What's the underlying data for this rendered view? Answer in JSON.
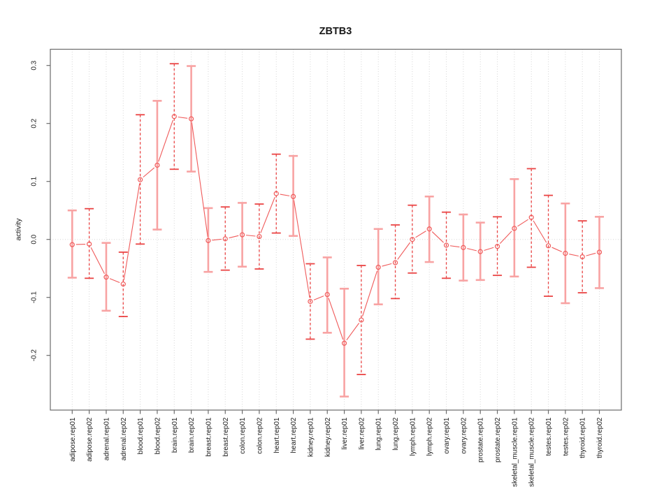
{
  "figure": {
    "title": "ZBTB3",
    "ylabel": "activity"
  },
  "chart_data": {
    "type": "line",
    "title": "ZBTB3",
    "xlabel": "",
    "ylabel": "activity",
    "ylim": [
      -0.295,
      0.328
    ],
    "yticks": [
      0.3,
      0.2,
      0.1,
      0.0,
      -0.1,
      -0.2
    ],
    "grid": {
      "vertical_dotted_per_category": true,
      "horizontal_dotted_zero_line": true
    },
    "legend": null,
    "categories": [
      "adipose.rep01",
      "adipose.rep02",
      "adrenal.rep01",
      "adrenal.rep02",
      "blood.rep01",
      "blood.rep02",
      "brain.rep01",
      "brain.rep02",
      "breast.rep01",
      "breast.rep02",
      "colon.rep01",
      "colon.rep02",
      "heart.rep01",
      "heart.rep02",
      "kidney.rep01",
      "kidney.rep02",
      "liver.rep01",
      "liver.rep02",
      "lung.rep01",
      "lung.rep02",
      "lymph.rep01",
      "lymph.rep02",
      "ovary.rep01",
      "ovary.rep02",
      "prostate.rep01",
      "prostate.rep02",
      "skeletal_muscle.rep01",
      "skeletal_muscle.rep02",
      "testes.rep01",
      "testes.rep02",
      "thyroid.rep01",
      "thyroid.rep02"
    ],
    "series": [
      {
        "name": "activity",
        "marker": "open-circle",
        "values": [
          -0.009,
          -0.008,
          -0.065,
          -0.077,
          0.103,
          0.128,
          0.212,
          0.208,
          -0.002,
          0.001,
          0.008,
          0.005,
          0.079,
          0.074,
          -0.107,
          -0.095,
          -0.179,
          -0.139,
          -0.048,
          -0.04,
          0.0,
          0.018,
          -0.01,
          -0.014,
          -0.021,
          -0.012,
          0.019,
          0.038,
          -0.011,
          -0.024,
          -0.03,
          -0.022
        ],
        "error_low": [
          -0.066,
          -0.067,
          -0.123,
          -0.133,
          -0.008,
          0.017,
          0.121,
          0.117,
          -0.056,
          -0.053,
          -0.047,
          -0.051,
          0.011,
          0.006,
          -0.172,
          -0.161,
          -0.271,
          -0.233,
          -0.112,
          -0.102,
          -0.058,
          -0.039,
          -0.067,
          -0.071,
          -0.07,
          -0.062,
          -0.064,
          -0.048,
          -0.098,
          -0.11,
          -0.092,
          -0.084
        ],
        "error_high": [
          0.05,
          0.053,
          -0.006,
          -0.022,
          0.215,
          0.239,
          0.303,
          0.299,
          0.054,
          0.056,
          0.063,
          0.061,
          0.147,
          0.144,
          -0.042,
          -0.031,
          -0.085,
          -0.045,
          0.018,
          0.025,
          0.059,
          0.074,
          0.047,
          0.043,
          0.029,
          0.039,
          0.104,
          0.122,
          0.076,
          0.062,
          0.032,
          0.039
        ],
        "errorbar_styles": [
          "solid",
          "dashed",
          "solid",
          "dashed",
          "dashed",
          "solid",
          "dashed",
          "solid",
          "solid",
          "dashed",
          "solid",
          "dashed",
          "dashed",
          "solid",
          "dashed",
          "solid",
          "solid",
          "dashed",
          "solid",
          "dashed",
          "dashed",
          "solid",
          "dashed",
          "solid",
          "solid",
          "dashed",
          "solid",
          "dashed",
          "dashed",
          "solid",
          "dashed",
          "solid"
        ]
      }
    ],
    "colors": {
      "series": "#f05a5a",
      "errorbar_solid": "#f8a3a3",
      "errorbar_dashed": "#ea4545",
      "grid": "#d6d6d6",
      "axis": "#6b6b6b",
      "text": "#1a1a1a",
      "background": "#ffffff"
    }
  }
}
